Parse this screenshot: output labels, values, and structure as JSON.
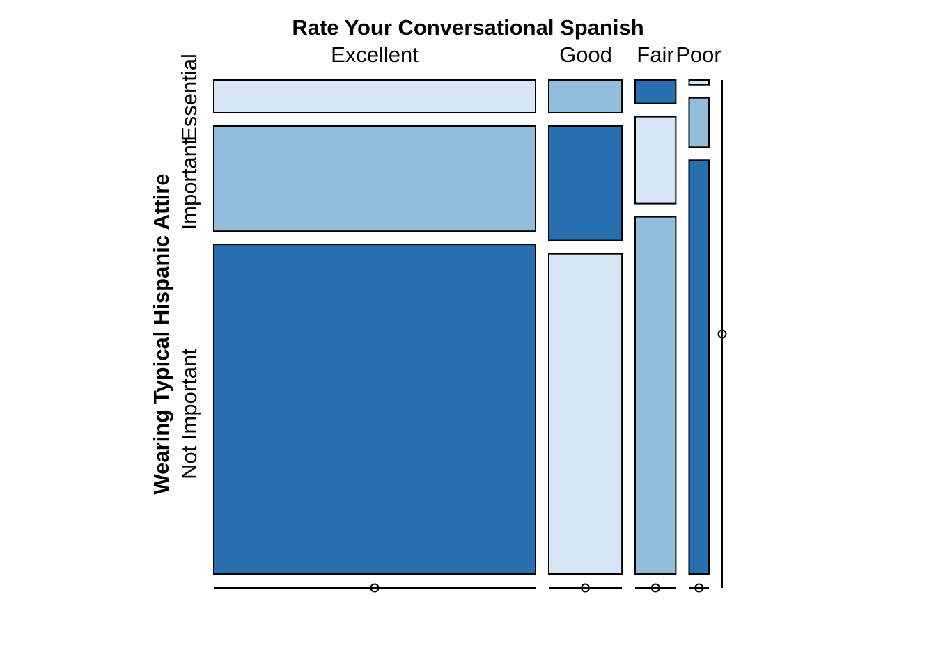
{
  "chart_data": {
    "type": "mosaic",
    "title": "Rate Your Conversational Spanish",
    "ylabel": "Wearing Typical Hispanic Attire",
    "categories": [
      "Excellent",
      "Good",
      "Fair",
      "Poor"
    ],
    "row_categories": [
      "Essential",
      "Important",
      "Not Important"
    ],
    "column_shares": [
      0.664,
      0.151,
      0.084,
      0.041
    ],
    "cell_shares": [
      [
        0.07,
        0.225,
        0.705
      ],
      [
        0.07,
        0.245,
        0.685
      ],
      [
        0.05,
        0.186,
        0.764
      ],
      [
        0.01,
        0.105,
        0.885
      ]
    ],
    "cell_colors": [
      [
        "#d7e6f5",
        "#92bedc",
        "#2a6fb0"
      ],
      [
        "#92bedc",
        "#2a6fb0",
        "#d7e6f5"
      ],
      [
        "#2a6fb0",
        "#d7e6f5",
        "#92bedc"
      ],
      [
        "#d7e6f5",
        "#92bedc",
        "#2a6fb0"
      ]
    ],
    "colors": {
      "light": "#d7e6f5",
      "medium": "#92bedc",
      "dark": "#2a6fb0"
    },
    "legend": "none",
    "grid": false
  }
}
